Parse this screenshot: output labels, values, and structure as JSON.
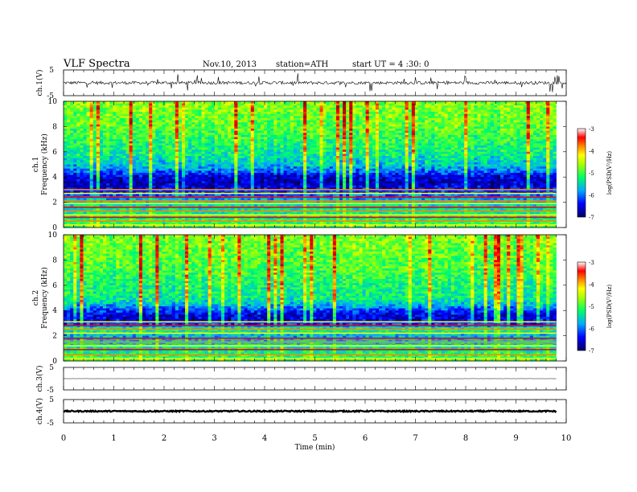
{
  "header": {
    "title": "VLF  Spectra",
    "date": "Nov.10, 2013",
    "station": "station=ATH",
    "start": "start  UT  =   4  :30: 0"
  },
  "colors": {
    "spec_low": "#000080",
    "spec_high": "#cc0000",
    "trace": "#000000"
  },
  "chart_data": [
    {
      "type": "line",
      "panel": "ch1",
      "ylabel": "ch.1(V)",
      "ylim": [
        -5,
        5
      ],
      "yticks": [
        "5",
        "-5"
      ],
      "xlim": [
        0,
        10
      ],
      "mean": 0,
      "noise_amplitude": 0.6,
      "spike_amplitude": 3.5
    },
    {
      "type": "heatmap",
      "panel": "ch1-spectrogram",
      "ylabel_top": "ch.1",
      "ylabel": "Frequency  (kHz)",
      "ylim": [
        0,
        10
      ],
      "yticks": [
        "0",
        "2",
        "4",
        "6",
        "8",
        "10"
      ],
      "xlim": [
        0,
        9.8
      ],
      "colorbar": {
        "label": "log(PSD(V²/Hz)",
        "range": [
          -7,
          -3
        ],
        "ticks": [
          "-3",
          "-4",
          "-5",
          "-6",
          "-7"
        ]
      },
      "profile": {
        "freq_khz": [
          0,
          1,
          2,
          3,
          3.5,
          4,
          4.5,
          5,
          6,
          7,
          8,
          9,
          10
        ],
        "log_psd": [
          -5.0,
          -5.3,
          -5.6,
          -6.4,
          -6.7,
          -6.6,
          -6.0,
          -5.6,
          -5.3,
          -5.1,
          -4.9,
          -4.8,
          -4.7
        ]
      },
      "lines_khz": [
        0.2,
        0.5,
        0.8,
        1.0,
        1.3,
        1.6,
        1.9,
        2.1,
        2.4,
        2.7,
        3.0
      ]
    },
    {
      "type": "heatmap",
      "panel": "ch2-spectrogram",
      "ylabel_top": "ch.2",
      "ylabel": "Frequency  (kHz)",
      "ylim": [
        0,
        10
      ],
      "yticks": [
        "0",
        "2",
        "4",
        "6",
        "8",
        "10"
      ],
      "xlim": [
        0,
        9.8
      ],
      "colorbar": {
        "label": "log(PSD(V²/Hz)",
        "range": [
          -7,
          -3
        ],
        "ticks": [
          "-3",
          "-4",
          "-5",
          "-6",
          "-7"
        ]
      },
      "profile": {
        "freq_khz": [
          0,
          1,
          2,
          2.5,
          3,
          3.5,
          4,
          4.5,
          5,
          6,
          7,
          8,
          9,
          10
        ],
        "log_psd": [
          -5.0,
          -5.4,
          -5.8,
          -5.2,
          -6.4,
          -6.6,
          -6.2,
          -5.6,
          -5.3,
          -5.2,
          -5.0,
          -4.9,
          -4.8,
          -4.7
        ]
      },
      "lines_khz": [
        0.2,
        0.5,
        0.9,
        1.2,
        1.5,
        1.8,
        2.2,
        2.5,
        2.8,
        3.1
      ]
    },
    {
      "type": "line",
      "panel": "ch3",
      "ylabel": "ch.3(V)",
      "ylim": [
        -5,
        5
      ],
      "yticks": [
        "5",
        "-5"
      ],
      "xlim": [
        0,
        9.8
      ],
      "mean": 0,
      "noise_amplitude": 0.05
    },
    {
      "type": "line",
      "panel": "ch4",
      "ylabel": "ch.4(V)",
      "ylim": [
        -5,
        5
      ],
      "yticks": [
        "5",
        "-5"
      ],
      "xlim": [
        0,
        9.8
      ],
      "mean": 0,
      "noise_amplitude": 0.25
    }
  ],
  "x_axis": {
    "label": "Time  (min)",
    "ticks": [
      "0",
      "1",
      "2",
      "3",
      "4",
      "5",
      "6",
      "7",
      "8",
      "9",
      "10"
    ],
    "range": [
      0,
      10
    ]
  }
}
